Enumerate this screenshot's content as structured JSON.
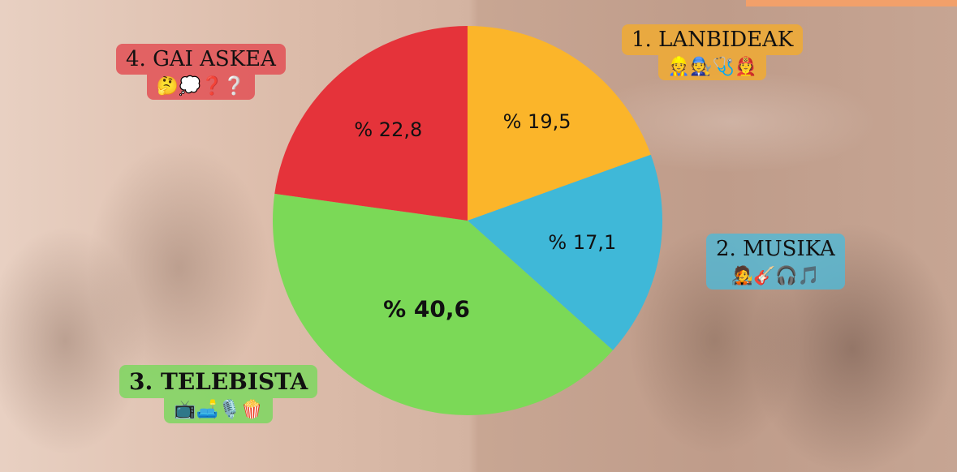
{
  "chart_data": {
    "type": "pie",
    "title": "",
    "start": "top",
    "direction": "clockwise",
    "slices": [
      {
        "label": "1. LANBIDEAK",
        "value": 19.5,
        "display": "% 19,5",
        "color": "#fbb52a",
        "emoji": "👷🧑‍🔧🩺🧑‍🚒"
      },
      {
        "label": "2. MUSIKA",
        "value": 17.1,
        "display": "% 17,1",
        "color": "#3fb8d8",
        "emoji": "🧑‍🎤🎸🎧🎵"
      },
      {
        "label": "3. TELEBISTA",
        "value": 40.6,
        "display": "% 40,6",
        "color": "#7bd957",
        "emoji": "📺🛋️🎙️🍿"
      },
      {
        "label": "4. GAI ASKEA",
        "value": 22.8,
        "display": "% 22,8",
        "color": "#e5333a",
        "emoji": "🤔💭❓❔"
      }
    ]
  }
}
